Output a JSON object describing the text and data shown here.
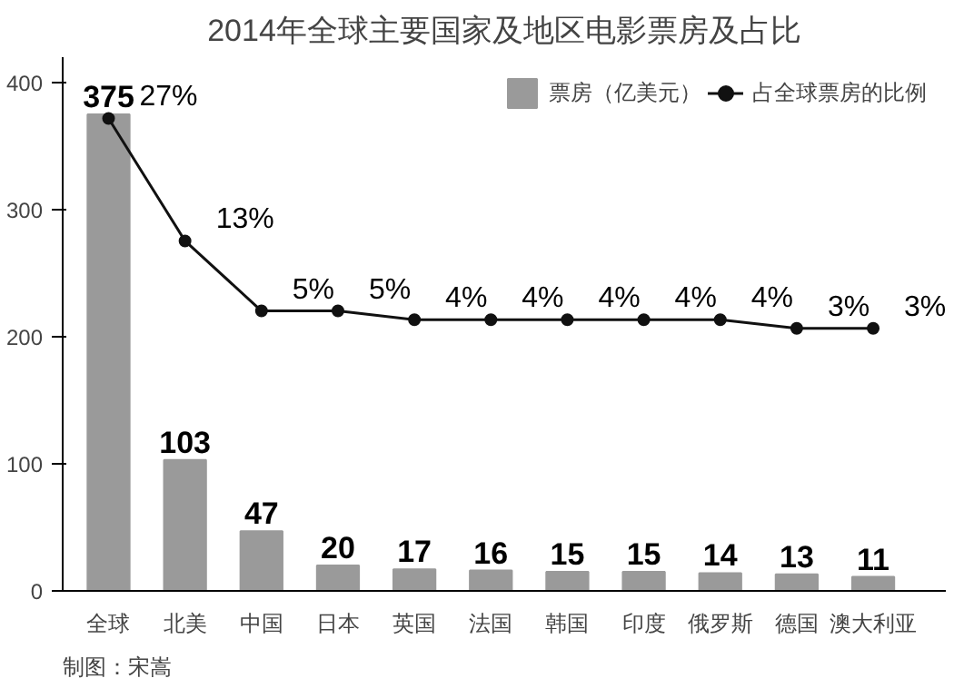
{
  "chart_data": {
    "type": "bar",
    "title": "2014年全球主要国家及地区电影票房及占比",
    "categories": [
      "全球",
      "北美",
      "中国",
      "日本",
      "英国",
      "法国",
      "韩国",
      "印度",
      "俄罗斯",
      "德国",
      "澳大利亚"
    ],
    "series": [
      {
        "name": "票房（亿美元）",
        "color": "#9a9a9a",
        "values": [
          375,
          103,
          47,
          20,
          17,
          16,
          15,
          15,
          14,
          13,
          11
        ]
      },
      {
        "name": "占全球票房的比例",
        "type": "line",
        "axis": "y2",
        "color": "#111111",
        "values": [
          27,
          13,
          5,
          5,
          4,
          4,
          4,
          4,
          4,
          3,
          3
        ],
        "value_labels": [
          "27%",
          "13%",
          "5%",
          "5%",
          "4%",
          "4%",
          "4%",
          "4%",
          "4%",
          "3%",
          "3%"
        ]
      }
    ],
    "ylim": [
      0,
      420
    ],
    "yticks": [
      0,
      100,
      200,
      300,
      400
    ],
    "y2lim": [
      -27,
      34
    ],
    "data_labels": true,
    "grid": false,
    "legend": "top right",
    "marker": "circle",
    "line_style": "solid",
    "annotations": [
      "制图：宋嵩"
    ]
  }
}
